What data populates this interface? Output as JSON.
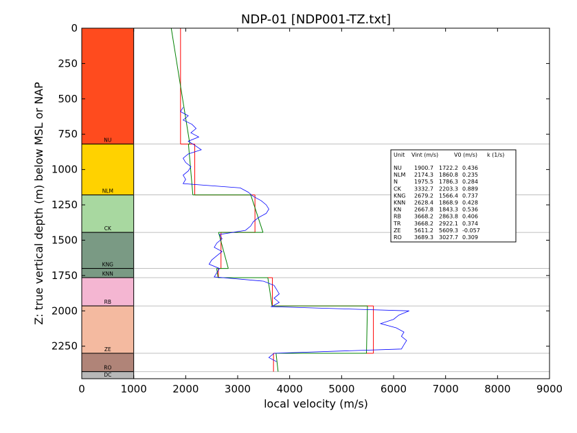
{
  "chart_data": {
    "type": "line",
    "title": "NDP-01 [NDP001-TZ.txt]",
    "xlabel": "local velocity (m/s)",
    "ylabel": "Z: true vertical depth (m) below MSL or NAP",
    "xlim": [
      0,
      9000
    ],
    "ylim": [
      0,
      2480
    ],
    "y_inverted": true,
    "grid": false,
    "x_ticks": [
      0,
      1000,
      2000,
      3000,
      4000,
      5000,
      6000,
      7000,
      8000,
      9000
    ],
    "y_ticks": [
      0,
      250,
      500,
      750,
      1000,
      1250,
      1500,
      1750,
      2000,
      2250
    ],
    "colors": {
      "measured": "#0000ff",
      "vint": "#ff0000",
      "v0k": "#008000",
      "boundary": "#aaaaaa"
    },
    "units": [
      {
        "name": "NU",
        "top": 0,
        "base": 820,
        "color": "#ff4b1e"
      },
      {
        "name": "NLM",
        "top": 820,
        "base": 1180,
        "color": "#ffd200"
      },
      {
        "name": "CK",
        "top": 1180,
        "base": 1445,
        "color": "#a8d8a0"
      },
      {
        "name": "KNG",
        "top": 1445,
        "base": 1700,
        "color": "#7a9a84"
      },
      {
        "name": "KNN",
        "top": 1700,
        "base": 1765,
        "color": "#7a9a84"
      },
      {
        "name": "RB",
        "top": 1765,
        "base": 1965,
        "color": "#f4b6d2"
      },
      {
        "name": "ZE",
        "top": 1965,
        "base": 2300,
        "color": "#f4baa0"
      },
      {
        "name": "RO",
        "top": 2300,
        "base": 2430,
        "color": "#b08478"
      },
      {
        "name": "DC",
        "top": 2430,
        "base": 2480,
        "color": "#b8b8b8"
      }
    ],
    "table": {
      "header": [
        "Unit",
        "Vint (m/s)",
        "V0 (m/s)",
        "k (1/s)"
      ],
      "rows": [
        [
          "NU",
          "1900.7",
          "1722.2",
          "0.436"
        ],
        [
          "NLM",
          "2174.3",
          "1860.8",
          "0.235"
        ],
        [
          "N",
          "1975.5",
          "1786.3",
          "0.284"
        ],
        [
          "CK",
          "3332.7",
          "2203.3",
          "0.889"
        ],
        [
          "KNG",
          "2679.2",
          "1566.4",
          "0.737"
        ],
        [
          "KNN",
          "2628.4",
          "1868.9",
          "0.428"
        ],
        [
          "KN",
          "2667.8",
          "1843.3",
          "0.536"
        ],
        [
          "RB",
          "3668.2",
          "2863.8",
          "0.406"
        ],
        [
          "TR",
          "3668.2",
          "2922.1",
          "0.374"
        ],
        [
          "ZE",
          "5611.2",
          "5609.3",
          "-0.057"
        ],
        [
          "RO",
          "3689.3",
          "3027.7",
          "0.309"
        ]
      ]
    },
    "series": [
      {
        "id": "vint",
        "segments": [
          {
            "depth": [
              0,
              820
            ],
            "velocity": [
              1900.7,
              1900.7
            ]
          },
          {
            "depth": [
              820,
              1180
            ],
            "velocity": [
              2174.3,
              2174.3
            ]
          },
          {
            "depth": [
              1180,
              1445
            ],
            "velocity": [
              3332.7,
              3332.7
            ]
          },
          {
            "depth": [
              1445,
              1700
            ],
            "velocity": [
              2679.2,
              2679.2
            ]
          },
          {
            "depth": [
              1700,
              1765
            ],
            "velocity": [
              2628.4,
              2628.4
            ]
          },
          {
            "depth": [
              1765,
              1965
            ],
            "velocity": [
              3668.2,
              3668.2
            ]
          },
          {
            "depth": [
              1965,
              2300
            ],
            "velocity": [
              5611.2,
              5611.2
            ]
          },
          {
            "depth": [
              2300,
              2430
            ],
            "velocity": [
              3689.3,
              3689.3
            ]
          }
        ]
      },
      {
        "id": "v0k",
        "segments": [
          {
            "depth": [
              0,
              820
            ],
            "velocity": [
              1722,
              2080
            ]
          },
          {
            "depth": [
              820,
              1180
            ],
            "velocity": [
              2053,
              2138
            ]
          },
          {
            "depth": [
              1180,
              1445
            ],
            "velocity": [
              3252,
              3488
            ]
          },
          {
            "depth": [
              1445,
              1700
            ],
            "velocity": [
              2632,
              2820
            ]
          },
          {
            "depth": [
              1700,
              1765
            ],
            "velocity": [
              2596,
              2624
            ]
          },
          {
            "depth": [
              1765,
              1965
            ],
            "velocity": [
              3580,
              3662
            ]
          },
          {
            "depth": [
              1965,
              2300
            ],
            "velocity": [
              5497,
              5478
            ]
          },
          {
            "depth": [
              2300,
              2430
            ],
            "velocity": [
              3738,
              3778
            ]
          }
        ]
      },
      {
        "id": "measured",
        "depth": [
          560,
          590,
          620,
          650,
          680,
          710,
          740,
          770,
          800,
          830,
          860,
          890,
          920,
          950,
          980,
          1010,
          1040,
          1070,
          1100,
          1130,
          1160,
          1190,
          1220,
          1250,
          1280,
          1310,
          1340,
          1370,
          1400,
          1430,
          1460,
          1490,
          1520,
          1550,
          1580,
          1610,
          1640,
          1670,
          1700,
          1730,
          1760,
          1790,
          1820,
          1850,
          1880,
          1910,
          1940,
          1970,
          2000,
          2030,
          2060,
          2090,
          2120,
          2150,
          2180,
          2210,
          2240,
          2270,
          2300,
          2330,
          2360
        ],
        "velocity": [
          1950,
          1900,
          2050,
          1950,
          2120,
          2200,
          2100,
          2250,
          2050,
          2180,
          2300,
          2050,
          1950,
          2000,
          2100,
          2050,
          1950,
          2000,
          1950,
          3050,
          3200,
          3300,
          3450,
          3550,
          3600,
          3550,
          3400,
          3300,
          3250,
          3150,
          2650,
          2700,
          2600,
          2550,
          2700,
          2600,
          2500,
          2450,
          2650,
          2600,
          2550,
          3500,
          3700,
          3750,
          3800,
          3700,
          3800,
          3650,
          6300,
          6100,
          6000,
          5750,
          6050,
          6200,
          6150,
          6250,
          6200,
          6150,
          3700,
          3600,
          3750
        ]
      }
    ]
  }
}
